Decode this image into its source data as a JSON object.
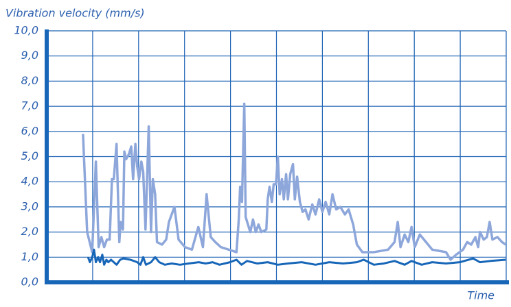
{
  "chart_data": {
    "type": "line",
    "title": "Vibration velocity (mm/s)",
    "x_label": "Time",
    "xlim": [
      0,
      10
    ],
    "ylim": [
      0,
      10
    ],
    "yticks": [
      {
        "value": 0,
        "label": "0,0"
      },
      {
        "value": 1,
        "label": "1,0"
      },
      {
        "value": 2,
        "label": "2,0"
      },
      {
        "value": 3,
        "label": "3,0"
      },
      {
        "value": 4,
        "label": "4,0"
      },
      {
        "value": 5,
        "label": "5,0"
      },
      {
        "value": 6,
        "label": "6,0"
      },
      {
        "value": 7,
        "label": "7,0"
      },
      {
        "value": 8,
        "label": "8,0"
      },
      {
        "value": 9,
        "label": "9,0"
      },
      {
        "value": 10,
        "label": "10,0"
      }
    ],
    "grid": true,
    "series": [
      {
        "color": "#8ea7db",
        "x": [
          0.79,
          0.88,
          0.99,
          1.07,
          1.13,
          1.19,
          1.25,
          1.31,
          1.37,
          1.42,
          1.46,
          1.52,
          1.58,
          1.61,
          1.66,
          1.69,
          1.73,
          1.79,
          1.84,
          1.88,
          1.93,
          1.97,
          2.01,
          2.06,
          2.1,
          2.15,
          2.22,
          2.27,
          2.31,
          2.36,
          2.4,
          2.51,
          2.6,
          2.66,
          2.78,
          2.87,
          3.01,
          3.16,
          3.3,
          3.4,
          3.48,
          3.57,
          3.67,
          3.79,
          4.13,
          4.18,
          4.21,
          4.25,
          4.3,
          4.33,
          4.43,
          4.49,
          4.55,
          4.61,
          4.67,
          4.78,
          4.81,
          4.85,
          4.9,
          4.94,
          4.99,
          5.03,
          5.07,
          5.12,
          5.16,
          5.21,
          5.25,
          5.3,
          5.36,
          5.4,
          5.45,
          5.51,
          5.57,
          5.63,
          5.7,
          5.78,
          5.85,
          5.93,
          6.0,
          6.07,
          6.15,
          6.22,
          6.3,
          6.39,
          6.49,
          6.57,
          6.67,
          6.75,
          6.87,
          7.12,
          7.43,
          7.57,
          7.64,
          7.7,
          7.79,
          7.87,
          7.94,
          8.01,
          8.12,
          8.39,
          8.69,
          8.79,
          8.91,
          9.06,
          9.15,
          9.24,
          9.33,
          9.39,
          9.43,
          9.51,
          9.58,
          9.64,
          9.7,
          9.81,
          9.91,
          9.99
        ],
        "values": [
          5.9,
          2.0,
          1.2,
          4.8,
          1.4,
          1.8,
          1.4,
          1.7,
          1.7,
          4.1,
          4.1,
          5.5,
          1.6,
          2.4,
          2.1,
          5.2,
          4.9,
          5.1,
          5.4,
          4.1,
          5.5,
          4.6,
          4.1,
          4.8,
          4.4,
          2.1,
          6.2,
          2.0,
          4.1,
          3.5,
          1.6,
          1.5,
          1.7,
          2.4,
          3.0,
          1.7,
          1.4,
          1.3,
          2.2,
          1.4,
          3.5,
          1.8,
          1.6,
          1.4,
          1.2,
          2.5,
          3.8,
          3.2,
          7.1,
          2.6,
          2.0,
          2.5,
          2.0,
          2.3,
          2.0,
          2.1,
          3.3,
          3.8,
          3.2,
          3.9,
          3.9,
          5.0,
          3.5,
          4.1,
          3.3,
          4.3,
          3.3,
          4.3,
          4.7,
          3.3,
          4.2,
          3.2,
          2.8,
          2.9,
          2.5,
          3.1,
          2.7,
          3.3,
          2.8,
          3.2,
          2.7,
          3.5,
          2.9,
          3.0,
          2.7,
          2.9,
          2.3,
          1.5,
          1.2,
          1.2,
          1.3,
          1.6,
          2.4,
          1.4,
          1.9,
          1.6,
          2.2,
          1.4,
          1.9,
          1.3,
          1.2,
          0.9,
          1.1,
          1.3,
          1.6,
          1.5,
          1.8,
          1.4,
          2.0,
          1.7,
          1.8,
          2.4,
          1.7,
          1.8,
          1.6,
          1.5
        ]
      },
      {
        "color": "#1766b8",
        "x": [
          0.9,
          0.94,
          0.99,
          1.03,
          1.07,
          1.12,
          1.16,
          1.21,
          1.25,
          1.3,
          1.34,
          1.4,
          1.46,
          1.52,
          1.6,
          1.67,
          1.82,
          1.97,
          2.04,
          2.1,
          2.16,
          2.27,
          2.36,
          2.45,
          2.57,
          2.72,
          2.9,
          3.09,
          3.31,
          3.46,
          3.61,
          3.76,
          3.99,
          4.13,
          4.24,
          4.36,
          4.58,
          4.81,
          5.03,
          5.25,
          5.55,
          5.85,
          6.15,
          6.45,
          6.75,
          6.9,
          7.12,
          7.34,
          7.57,
          7.79,
          7.94,
          8.16,
          8.39,
          8.69,
          8.99,
          9.28,
          9.43,
          9.66,
          9.99
        ],
        "values": [
          1.0,
          0.8,
          1.0,
          1.3,
          0.8,
          1.0,
          0.8,
          1.1,
          0.7,
          0.9,
          0.8,
          0.9,
          0.8,
          0.7,
          0.9,
          0.95,
          0.9,
          0.8,
          0.7,
          1.0,
          0.7,
          0.8,
          1.0,
          0.8,
          0.7,
          0.75,
          0.7,
          0.75,
          0.8,
          0.75,
          0.8,
          0.7,
          0.8,
          0.9,
          0.7,
          0.85,
          0.75,
          0.8,
          0.7,
          0.75,
          0.8,
          0.7,
          0.8,
          0.75,
          0.8,
          0.9,
          0.7,
          0.75,
          0.85,
          0.7,
          0.85,
          0.7,
          0.8,
          0.75,
          0.8,
          0.95,
          0.8,
          0.85,
          0.9
        ]
      }
    ]
  }
}
